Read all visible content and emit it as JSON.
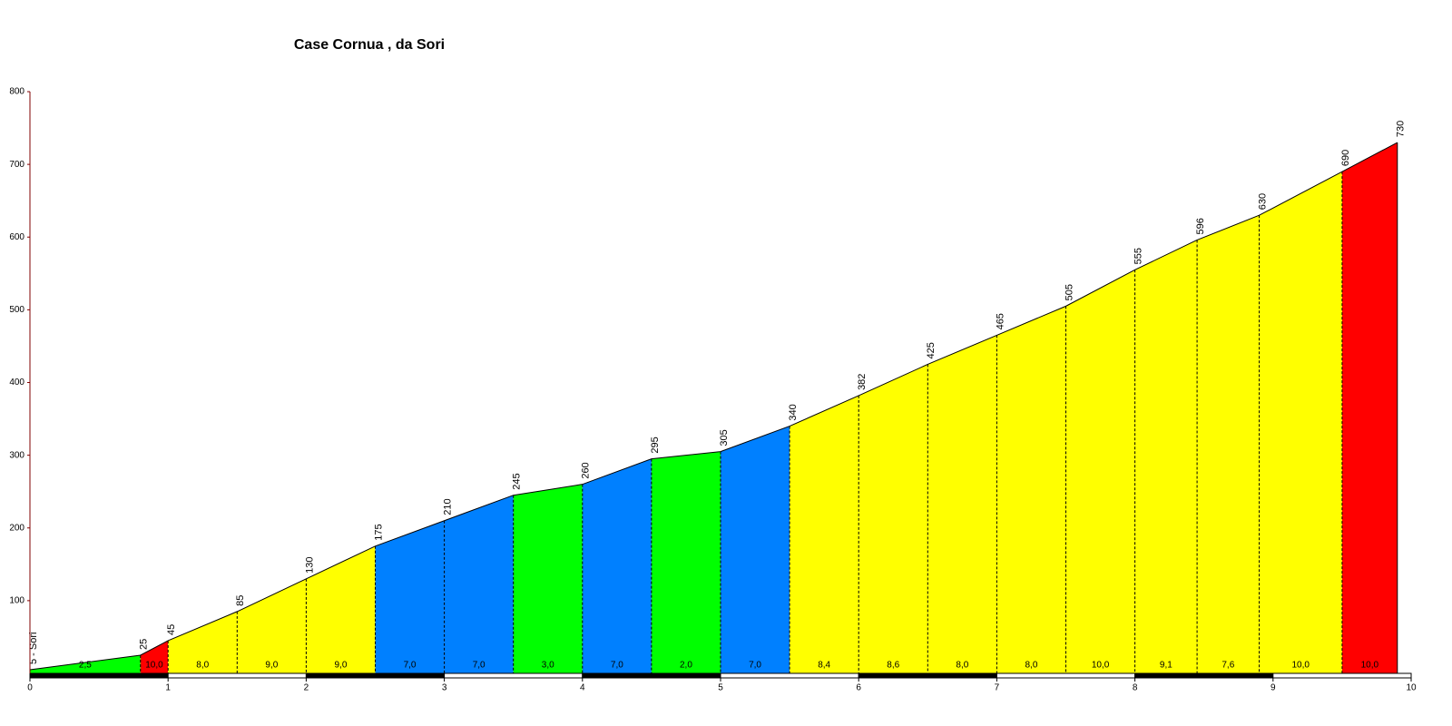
{
  "chart_data": {
    "type": "elevation-profile",
    "title": "Case Cornua , da Sori",
    "x": [
      0,
      0.8,
      1,
      1.5,
      2,
      2.5,
      3,
      3.5,
      4,
      4.5,
      5,
      5.5,
      6,
      6.5,
      7,
      7.5,
      8,
      8.45,
      8.9,
      9.5,
      9.9
    ],
    "series": [
      {
        "name": "elevation",
        "values": [
          5,
          25,
          45,
          85,
          130,
          175,
          210,
          245,
          260,
          295,
          305,
          340,
          382,
          425,
          465,
          505,
          555,
          596,
          630,
          690,
          730
        ],
        "value_labels": [
          "5 - Sori",
          "25",
          "45",
          "85",
          "130",
          "175",
          "210",
          "245",
          "260",
          "295",
          "305",
          "340",
          "382",
          "425",
          "465",
          "505",
          "555",
          "596",
          "630",
          "690",
          "730"
        ]
      }
    ],
    "gradients": {
      "values": [
        2.5,
        10,
        8,
        9,
        9,
        7,
        7,
        3,
        7,
        2,
        7,
        8.4,
        8.6,
        8,
        8,
        10,
        9.1,
        7.6,
        10,
        10
      ],
      "value_labels": [
        "2,5",
        "10,0",
        "8,0",
        "9,0",
        "9,0",
        "7,0",
        "7,0",
        "3,0",
        "7,0",
        "2,0",
        "7,0",
        "8,4",
        "8,6",
        "8,0",
        "8,0",
        "10,0",
        "9,1",
        "7,6",
        "10,0",
        "10,0"
      ],
      "colors": [
        "#00ff00",
        "#ff0000",
        "#ffff00",
        "#ffff00",
        "#ffff00",
        "#0080ff",
        "#0080ff",
        "#00ff00",
        "#0080ff",
        "#00ff00",
        "#0080ff",
        "#ffff00",
        "#ffff00",
        "#ffff00",
        "#ffff00",
        "#ffff00",
        "#ffff00",
        "#ffff00",
        "#ffff00",
        "#ff0000"
      ]
    },
    "xlim": [
      0,
      10
    ],
    "xticks": [
      0,
      1,
      2,
      3,
      4,
      5,
      6,
      7,
      8,
      9,
      10
    ],
    "ylim": [
      0,
      800
    ],
    "yticks": [
      100,
      200,
      300,
      400,
      500,
      600,
      700,
      800
    ]
  }
}
